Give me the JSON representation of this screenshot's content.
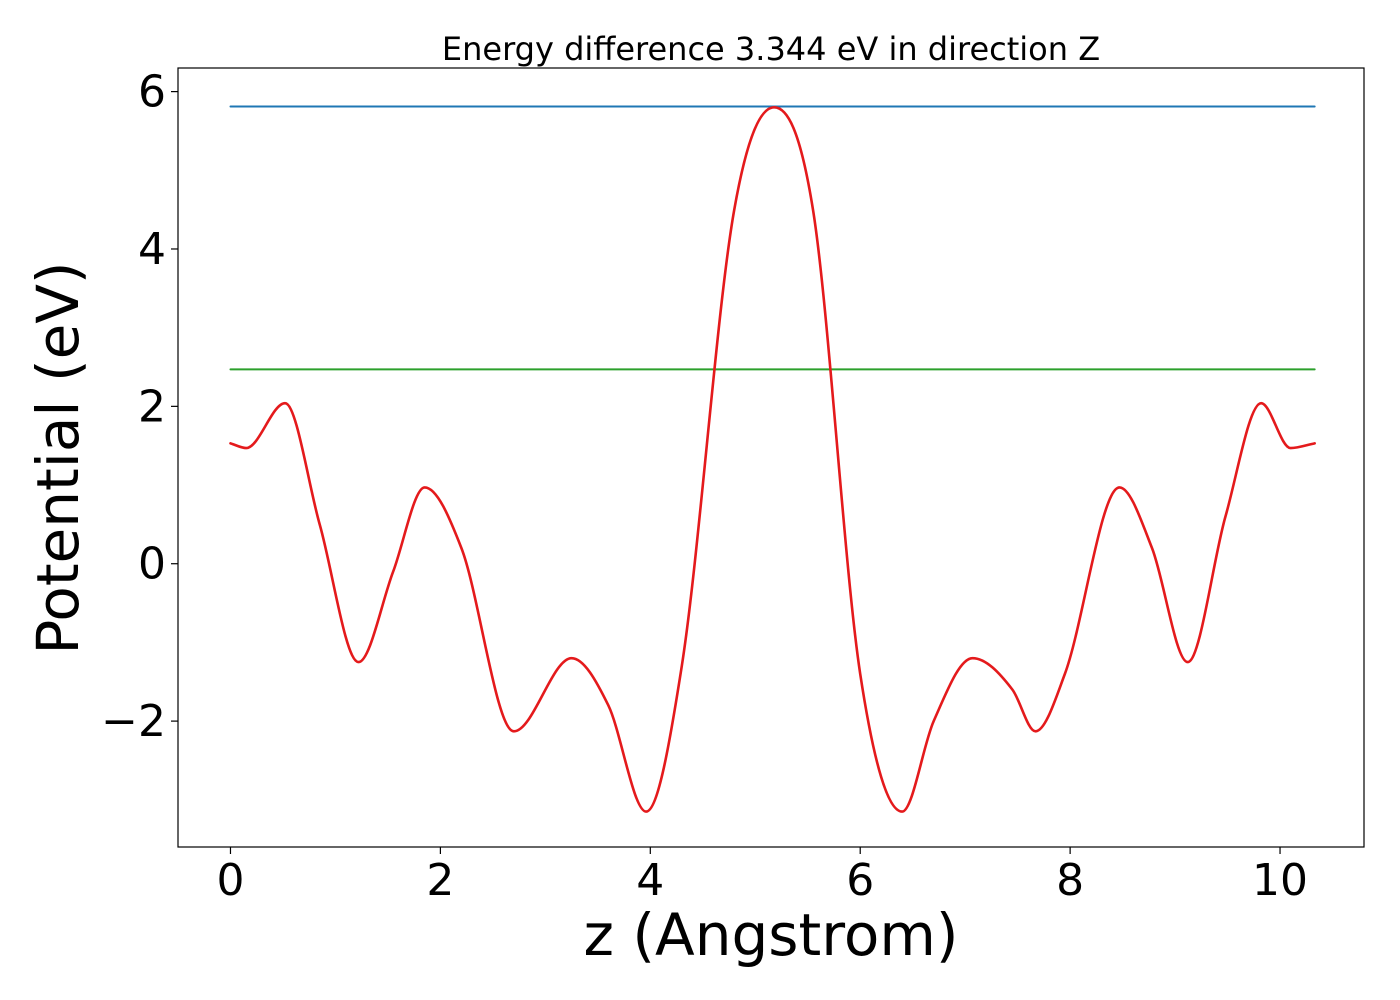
{
  "chart_data": {
    "type": "line",
    "title": "Energy difference 3.344 eV in direction Z",
    "xlabel": "z (Angstrom)",
    "ylabel": "Potential (eV)",
    "xlim": [
      -0.5,
      10.8
    ],
    "ylim": [
      -3.6,
      6.3
    ],
    "xticks": [
      0,
      2,
      4,
      6,
      8,
      10
    ],
    "xtick_labels": [
      "0",
      "2",
      "4",
      "6",
      "8",
      "10"
    ],
    "yticks": [
      -2,
      0,
      2,
      4,
      6
    ],
    "ytick_labels": [
      "−2",
      "0",
      "2",
      "4",
      "6"
    ],
    "grid": false,
    "legend": "none",
    "series": [
      {
        "color": "#1f77b4",
        "style": "hline",
        "x": [
          0,
          10.33
        ],
        "y": [
          5.81,
          5.81
        ]
      },
      {
        "color": "#2ca02c",
        "style": "hline",
        "x": [
          0,
          10.33
        ],
        "y": [
          2.47,
          2.47
        ]
      },
      {
        "color": "#e41a1c",
        "style": "curve",
        "x": [
          0,
          0.15,
          0.52,
          0.85,
          1.22,
          1.55,
          1.85,
          2.2,
          2.7,
          3.25,
          3.6,
          3.96,
          4.3,
          4.8,
          5.18,
          5.55,
          6.0,
          6.4,
          6.7,
          7.07,
          7.45,
          7.67,
          7.95,
          8.47,
          8.78,
          9.12,
          9.48,
          9.82,
          10.1,
          10.33
        ],
        "y": [
          1.53,
          1.47,
          2.04,
          0.5,
          -1.25,
          -0.1,
          0.97,
          0.2,
          -2.13,
          -1.2,
          -1.8,
          -3.15,
          -1.3,
          4.5,
          5.8,
          4.5,
          -1.4,
          -3.15,
          -2.0,
          -1.2,
          -1.6,
          -2.13,
          -1.4,
          0.97,
          0.2,
          -1.25,
          0.6,
          2.04,
          1.47,
          1.53
        ]
      }
    ]
  }
}
